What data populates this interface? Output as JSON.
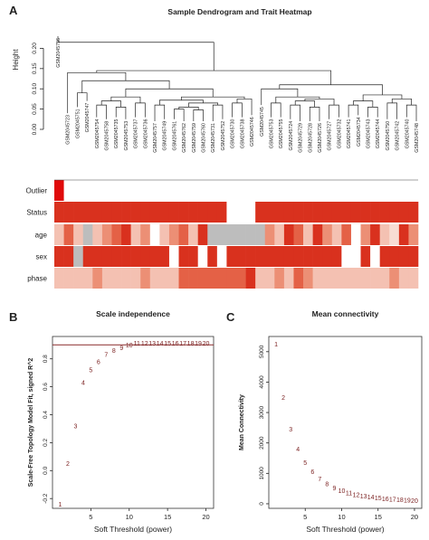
{
  "panels": {
    "A": "A",
    "B": "B",
    "C": "C"
  },
  "colors": {
    "red": "#d9311e",
    "bright": "#e00b0b",
    "grey": "#bdbdbd",
    "line": "#8a2a2a",
    "text": "#7a1f1f"
  },
  "chart_data": [
    {
      "type": "heatmap",
      "title": "Sample Dendrogram and Trait Heatmap",
      "ylabel": "Height",
      "ylim": [
        0,
        0.23
      ],
      "y_ticks": [
        "0.00",
        "0.05",
        "0.10",
        "0.15",
        "0.20"
      ],
      "samples": [
        "GSM2045756",
        "GSM2045723",
        "GSM2045751",
        "GSM2045747",
        "GSM2045754",
        "GSM2045758",
        "GSM2045735",
        "GSM2045753",
        "GSM2045737",
        "GSM2045736",
        "GSM2045757",
        "GSM2045749",
        "GSM2045761",
        "GSM2045762",
        "GSM2045759",
        "GSM2045760",
        "GSM2045731",
        "GSM2045752",
        "GSM2045730",
        "GSM2045738",
        "GSM2045746",
        "GSM2045745",
        "GSM2045753",
        "GSM2045755",
        "GSM2045724",
        "GSM2045729",
        "GSM2045728",
        "GSM2045726",
        "GSM2045727",
        "GSM2045732",
        "GSM2045741",
        "GSM2045734",
        "GSM2045743",
        "GSM2045744",
        "GSM2045750",
        "GSM2045742",
        "GSM2045740",
        "GSM2045748"
      ],
      "traits": [
        "Outlier",
        "Status",
        "age",
        "sex",
        "phase"
      ]
    },
    {
      "type": "scatter",
      "title": "Scale independence",
      "xlabel": "Soft Threshold (power)",
      "ylabel": "Scale-Free Topology Model Fit, signed R^2",
      "xlim": [
        0,
        21
      ],
      "ylim": [
        -0.27,
        0.96
      ],
      "x_ticks": [
        5,
        10,
        15,
        20
      ],
      "y_ticks": [
        "-0.2",
        "0.0",
        "0.2",
        "0.4",
        "0.6",
        "0.8"
      ],
      "threshold": 0.9,
      "x": [
        1,
        2,
        3,
        4,
        5,
        6,
        7,
        8,
        9,
        10,
        11,
        12,
        13,
        14,
        15,
        16,
        17,
        18,
        19,
        20
      ],
      "y": [
        -0.24,
        0.05,
        0.32,
        0.63,
        0.72,
        0.78,
        0.83,
        0.86,
        0.88,
        0.9,
        0.91,
        0.91,
        0.91,
        0.91,
        0.91,
        0.91,
        0.91,
        0.91,
        0.91,
        0.91
      ]
    },
    {
      "type": "scatter",
      "title": "Mean connectivity",
      "xlabel": "Soft Threshold (power)",
      "ylabel": "Mean Connectivity",
      "xlim": [
        0,
        21
      ],
      "ylim": [
        -150,
        5500
      ],
      "x_ticks": [
        5,
        10,
        15,
        20
      ],
      "y_ticks": [
        0,
        1000,
        2000,
        3000,
        4000,
        5000
      ],
      "x": [
        1,
        2,
        3,
        4,
        5,
        6,
        7,
        8,
        9,
        10,
        11,
        12,
        13,
        14,
        15,
        16,
        17,
        18,
        19,
        20
      ],
      "y": [
        5250,
        3500,
        2450,
        1800,
        1350,
        1050,
        820,
        650,
        520,
        430,
        360,
        300,
        255,
        220,
        190,
        165,
        145,
        128,
        113,
        100
      ]
    }
  ]
}
